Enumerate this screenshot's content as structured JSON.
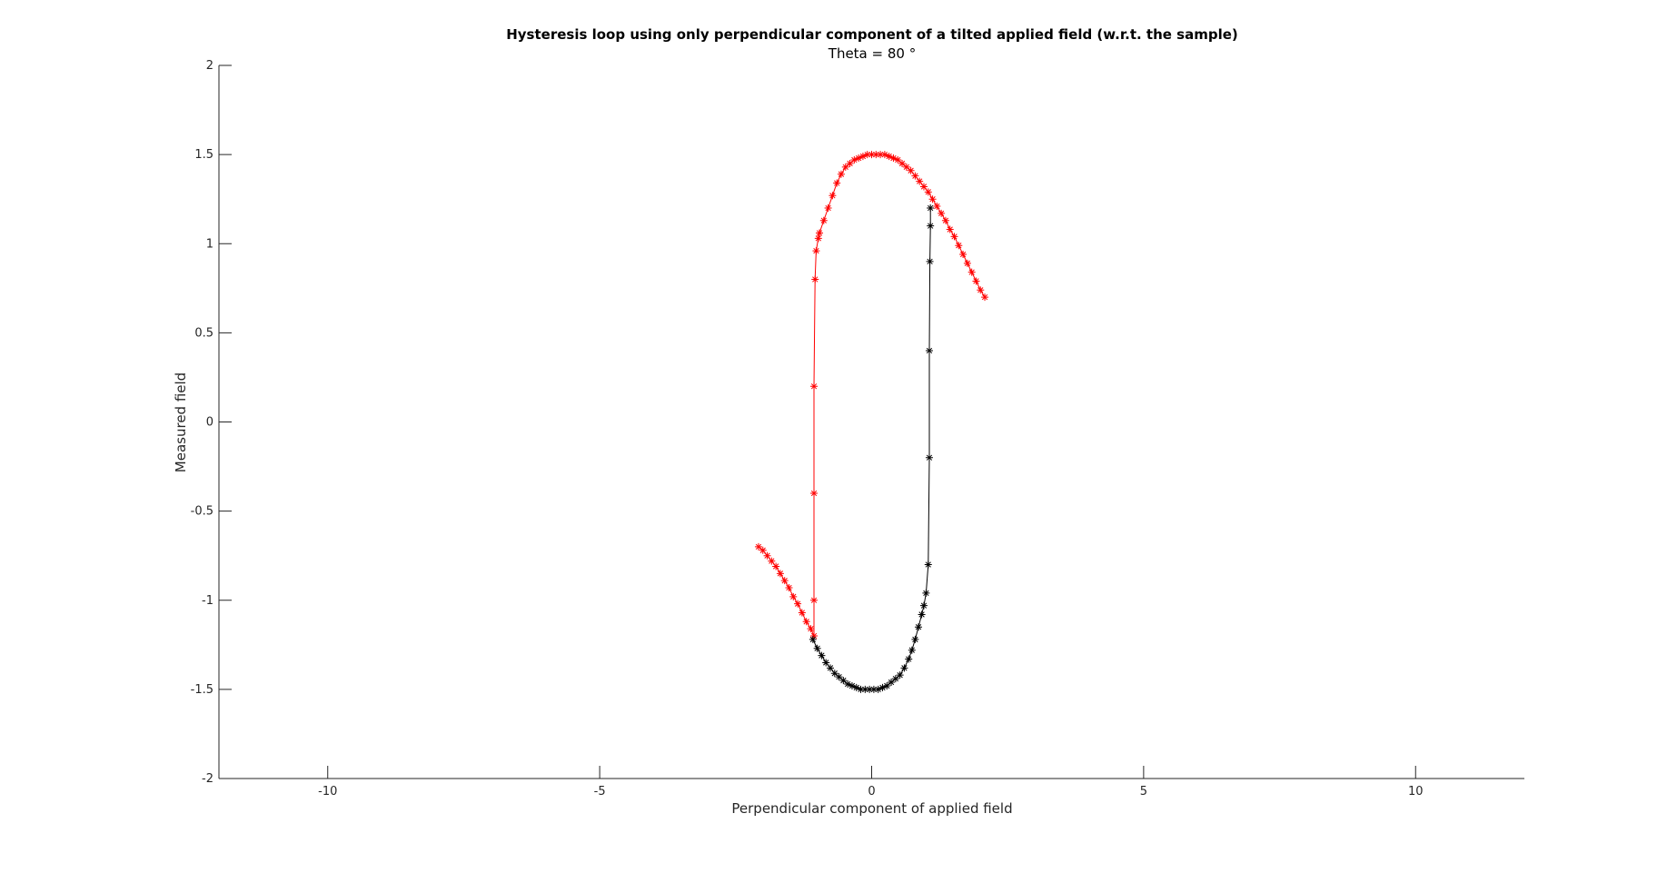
{
  "chart_data": {
    "type": "line",
    "title": "Hysteresis loop using only perpendicular component of a tilted applied field (w.r.t. the sample)",
    "subtitle": "Theta = 80 °",
    "xlabel": "Perpendicular component of applied field",
    "ylabel": "Measured field",
    "xlim": [
      -12,
      12
    ],
    "ylim": [
      -2,
      2
    ],
    "xticks": [
      -10,
      -5,
      0,
      5,
      10
    ],
    "xtick_labels": [
      "-10",
      "-5",
      "0",
      "5",
      "10"
    ],
    "yticks": [
      -2,
      -1.5,
      -1,
      -0.5,
      0,
      0.5,
      1,
      1.5,
      2
    ],
    "ytick_labels": [
      "-2",
      "-1.5",
      "-1",
      "-0.5",
      "0",
      "0.5",
      "1",
      "1.5",
      "2"
    ],
    "grid": false,
    "legend": "none",
    "marker": "*",
    "series": [
      {
        "color": "#ff0000",
        "x": [
          2.08,
          2.0,
          1.92,
          1.84,
          1.76,
          1.68,
          1.6,
          1.52,
          1.44,
          1.36,
          1.28,
          1.2,
          1.12,
          1.04,
          0.96,
          0.88,
          0.8,
          0.72,
          0.64,
          0.56,
          0.48,
          0.4,
          0.32,
          0.24,
          0.16,
          0.08,
          0.0,
          -0.08,
          -0.16,
          -0.24,
          -0.32,
          -0.4,
          -0.48,
          -0.56,
          -0.64,
          -0.72,
          -0.8,
          -0.88,
          -0.96,
          -0.98,
          -1.02,
          -1.04,
          -1.06,
          -1.06,
          -1.06,
          -1.06,
          -1.12,
          -1.2,
          -1.28,
          -1.36,
          -1.44,
          -1.52,
          -1.6,
          -1.68,
          -1.76,
          -1.84,
          -1.92,
          -2.0,
          -2.08
        ],
        "y": [
          0.7,
          0.74,
          0.79,
          0.84,
          0.89,
          0.94,
          0.99,
          1.04,
          1.08,
          1.13,
          1.17,
          1.21,
          1.25,
          1.29,
          1.32,
          1.35,
          1.38,
          1.41,
          1.43,
          1.45,
          1.47,
          1.48,
          1.49,
          1.5,
          1.5,
          1.5,
          1.5,
          1.5,
          1.49,
          1.48,
          1.47,
          1.45,
          1.43,
          1.39,
          1.34,
          1.27,
          1.2,
          1.13,
          1.06,
          1.03,
          0.96,
          0.8,
          0.2,
          -0.4,
          -1.0,
          -1.2,
          -1.16,
          -1.12,
          -1.07,
          -1.02,
          -0.98,
          -0.93,
          -0.89,
          -0.85,
          -0.81,
          -0.78,
          -0.75,
          -0.72,
          -0.7
        ]
      },
      {
        "color": "#000000",
        "x": [
          -1.08,
          -1.0,
          -0.92,
          -0.84,
          -0.76,
          -0.68,
          -0.6,
          -0.52,
          -0.44,
          -0.36,
          -0.28,
          -0.2,
          -0.12,
          -0.04,
          0.04,
          0.12,
          0.2,
          0.28,
          0.36,
          0.44,
          0.52,
          0.6,
          0.68,
          0.74,
          0.8,
          0.86,
          0.92,
          0.96,
          1.0,
          1.04,
          1.06,
          1.06,
          1.07,
          1.08,
          1.08
        ],
        "y": [
          -1.22,
          -1.27,
          -1.31,
          -1.35,
          -1.38,
          -1.41,
          -1.43,
          -1.45,
          -1.47,
          -1.48,
          -1.49,
          -1.5,
          -1.5,
          -1.5,
          -1.5,
          -1.5,
          -1.49,
          -1.48,
          -1.46,
          -1.44,
          -1.42,
          -1.38,
          -1.33,
          -1.28,
          -1.22,
          -1.15,
          -1.08,
          -1.03,
          -0.96,
          -0.8,
          -0.2,
          0.4,
          0.9,
          1.1,
          1.2
        ]
      }
    ]
  }
}
